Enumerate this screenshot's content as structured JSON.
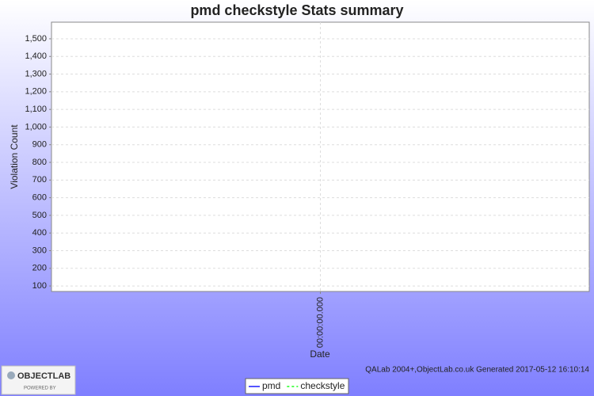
{
  "chart_data": {
    "type": "line",
    "title": "pmd checkstyle  Stats summary",
    "x_label": "Date",
    "y_label": "Violation Count",
    "categories": [
      "00:00:00.000"
    ],
    "series": [
      {
        "name": "pmd",
        "color": "#5555ff",
        "style": "solid",
        "values": [
          null
        ]
      },
      {
        "name": "checkstyle",
        "color": "#55ff55",
        "style": "dashed",
        "values": [
          null
        ]
      }
    ],
    "ylim": [
      69,
      1594
    ],
    "yticks": [
      100,
      200,
      300,
      400,
      500,
      600,
      700,
      800,
      900,
      {
        "value": 1000,
        "label": "1,000"
      },
      {
        "value": 1100,
        "label": "1,100"
      },
      {
        "value": 1200,
        "label": "1,200"
      },
      {
        "value": 1300,
        "label": "1,300"
      },
      {
        "value": 1400,
        "label": "1,400"
      },
      {
        "value": 1500,
        "label": "1,500"
      }
    ],
    "grid": true,
    "legend": "bottom",
    "footer": "QALab 2004+,ObjectLab.co.uk Generated 2017-05-12 16:10:14"
  },
  "logo": {
    "name": "OBJECTLAB",
    "tagline": "POWERED BY"
  }
}
